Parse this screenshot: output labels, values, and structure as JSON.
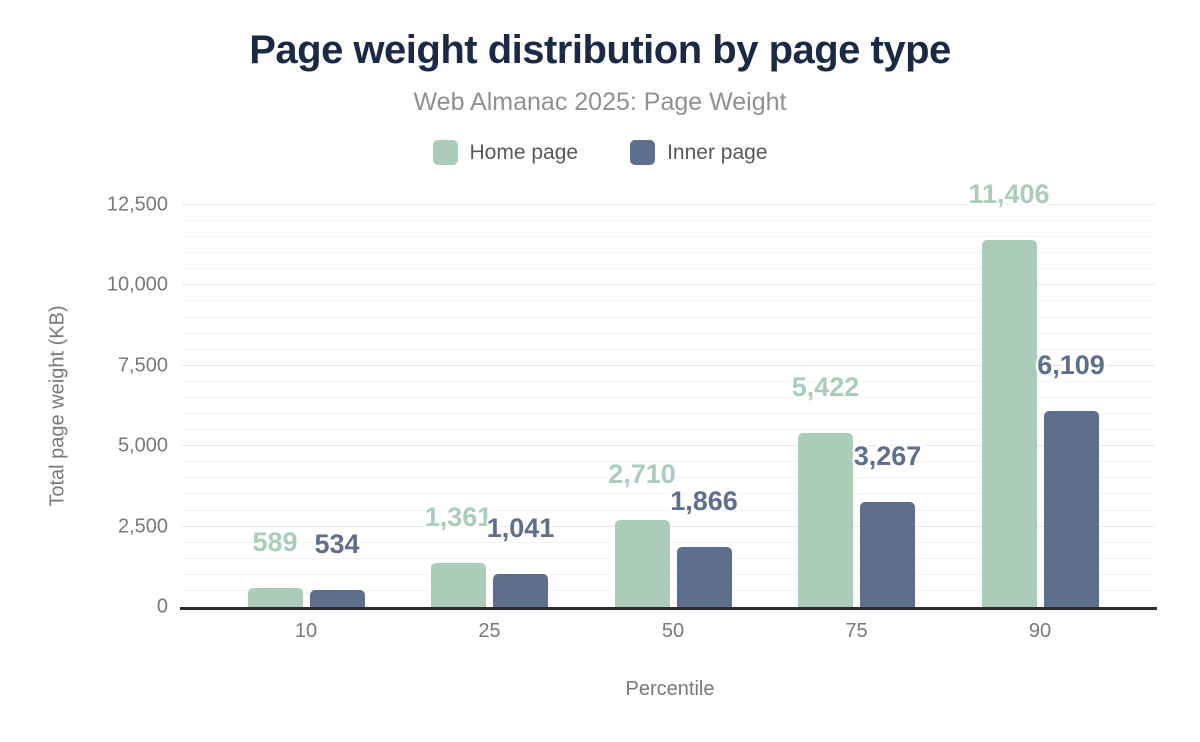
{
  "colors": {
    "title_text": "#1b2a44",
    "subtitle_text": "#8e9093",
    "legend_text": "#55585c",
    "axis_text": "#77797c",
    "axis_line": "#2d2d2d",
    "grid_major": "#e7e7e7",
    "grid_minor": "#f4f4f4",
    "page_background": "#ffffff"
  },
  "chart_data": {
    "type": "bar",
    "title": "Page weight distribution by page type",
    "subtitle": "Web Almanac 2025: Page Weight",
    "xlabel": "Percentile",
    "ylabel": "Total page weight (KB)",
    "categories": [
      "10",
      "25",
      "50",
      "75",
      "90"
    ],
    "series": [
      {
        "name": "Home page",
        "color": "#abccb8",
        "values": [
          589,
          1361,
          2710,
          5422,
          11406
        ],
        "value_labels": [
          "589",
          "1,361",
          "2,710",
          "5,422",
          "11,406"
        ]
      },
      {
        "name": "Inner page",
        "color": "#5d6f8c",
        "values": [
          534,
          1041,
          1866,
          3267,
          6109
        ],
        "value_labels": [
          "534",
          "1,041",
          "1,866",
          "3,267",
          "6,109"
        ]
      }
    ],
    "ylim": [
      0,
      12500
    ],
    "y_major_step": 2500,
    "y_minor_step": 500,
    "y_tick_labels": [
      "0",
      "2,500",
      "5,000",
      "7,500",
      "10,000",
      "12,500"
    ],
    "grid": true,
    "legend_position": "top"
  }
}
